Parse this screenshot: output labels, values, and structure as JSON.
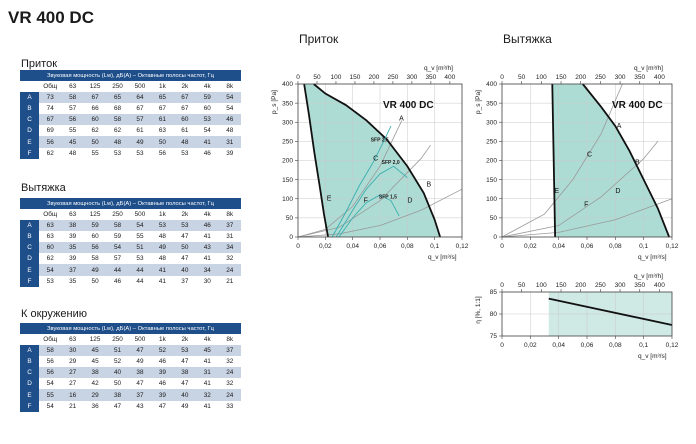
{
  "page_title": "VR 400 DC",
  "tables": [
    {
      "title": "Приток",
      "caption": "Звуковая мощность (Lw), дБ(А) – Октавные полосы частот, Гц",
      "columns": [
        "Общ",
        "63",
        "125",
        "250",
        "500",
        "1k",
        "2k",
        "4k",
        "8k"
      ],
      "rows": [
        {
          "label": "A",
          "values": [
            "73",
            "58",
            "67",
            "65",
            "64",
            "65",
            "67",
            "59",
            "54"
          ]
        },
        {
          "label": "B",
          "values": [
            "74",
            "57",
            "66",
            "68",
            "67",
            "67",
            "67",
            "60",
            "54"
          ]
        },
        {
          "label": "C",
          "values": [
            "67",
            "56",
            "60",
            "58",
            "57",
            "61",
            "60",
            "53",
            "46"
          ]
        },
        {
          "label": "D",
          "values": [
            "69",
            "55",
            "62",
            "62",
            "61",
            "63",
            "61",
            "54",
            "48"
          ]
        },
        {
          "label": "E",
          "values": [
            "56",
            "45",
            "50",
            "48",
            "49",
            "50",
            "48",
            "41",
            "31"
          ]
        },
        {
          "label": "F",
          "values": [
            "62",
            "48",
            "55",
            "53",
            "53",
            "56",
            "53",
            "46",
            "39"
          ]
        }
      ]
    },
    {
      "title": "Вытяжка",
      "caption": "Звуковая мощность (Lw), дБ(А) – Октавные полосы частот, Гц",
      "columns": [
        "Общ",
        "63",
        "125",
        "250",
        "500",
        "1k",
        "2k",
        "4k",
        "8k"
      ],
      "rows": [
        {
          "label": "A",
          "values": [
            "63",
            "38",
            "59",
            "58",
            "54",
            "53",
            "53",
            "46",
            "37"
          ]
        },
        {
          "label": "B",
          "values": [
            "63",
            "39",
            "60",
            "59",
            "55",
            "48",
            "47",
            "41",
            "31"
          ]
        },
        {
          "label": "C",
          "values": [
            "60",
            "35",
            "56",
            "54",
            "51",
            "49",
            "50",
            "43",
            "34"
          ]
        },
        {
          "label": "D",
          "values": [
            "62",
            "39",
            "58",
            "57",
            "53",
            "48",
            "47",
            "41",
            "32"
          ]
        },
        {
          "label": "E",
          "values": [
            "54",
            "37",
            "49",
            "44",
            "44",
            "41",
            "40",
            "34",
            "24"
          ]
        },
        {
          "label": "F",
          "values": [
            "53",
            "35",
            "50",
            "46",
            "44",
            "41",
            "37",
            "30",
            "21"
          ]
        }
      ]
    },
    {
      "title": "К окружению",
      "caption": "Звуковая мощность (Lw), дБ(А) – Октавные полосы частот, Гц",
      "columns": [
        "Общ",
        "63",
        "125",
        "250",
        "500",
        "1k",
        "2k",
        "4k",
        "8k"
      ],
      "rows": [
        {
          "label": "A",
          "values": [
            "58",
            "30",
            "45",
            "51",
            "47",
            "52",
            "53",
            "45",
            "37"
          ]
        },
        {
          "label": "B",
          "values": [
            "56",
            "29",
            "45",
            "52",
            "49",
            "46",
            "47",
            "41",
            "32"
          ]
        },
        {
          "label": "C",
          "values": [
            "56",
            "27",
            "38",
            "40",
            "38",
            "39",
            "38",
            "31",
            "24"
          ]
        },
        {
          "label": "D",
          "values": [
            "54",
            "27",
            "42",
            "50",
            "47",
            "46",
            "47",
            "41",
            "32"
          ]
        },
        {
          "label": "E",
          "values": [
            "55",
            "16",
            "29",
            "38",
            "37",
            "39",
            "40",
            "32",
            "24"
          ]
        },
        {
          "label": "F",
          "values": [
            "54",
            "21",
            "36",
            "47",
            "43",
            "47",
            "49",
            "41",
            "33"
          ]
        }
      ]
    }
  ],
  "chart_data": [
    {
      "type": "line",
      "title": "Приток",
      "model_label": "VR 400 DC",
      "xlabel": "q_v [m³/s]",
      "x2label": "q_v [m³/h]",
      "ylabel": "p_s [Pa]",
      "xlim": [
        0,
        0.12
      ],
      "ylim": [
        0,
        400
      ],
      "x_ticks": [
        "0",
        "0,02",
        "0,04",
        "0,06",
        "0,08",
        "0,1",
        "0,12"
      ],
      "x2_ticks": [
        "0",
        "50",
        "100",
        "150",
        "200",
        "250",
        "300",
        "350",
        "400"
      ],
      "y_ticks": [
        "0",
        "50",
        "100",
        "150",
        "200",
        "250",
        "300",
        "350",
        "400"
      ],
      "grid": true,
      "series": [
        {
          "role": "max_curve",
          "x": [
            0.0115,
            0.02,
            0.035,
            0.05,
            0.065,
            0.08,
            0.092,
            0.1,
            0.104
          ],
          "y": [
            400,
            375,
            345,
            305,
            255,
            185,
            115,
            45,
            0
          ]
        },
        {
          "role": "min_curve",
          "x": [
            0.0045,
            0.008,
            0.012,
            0.016,
            0.019,
            0.021,
            0.022
          ],
          "y": [
            400,
            320,
            220,
            130,
            60,
            20,
            0
          ]
        },
        {
          "name": "SFP 2,5",
          "x": [
            0.025,
            0.035,
            0.045,
            0.055,
            0.062,
            0.068
          ],
          "y": [
            0,
            65,
            135,
            195,
            245,
            290
          ]
        },
        {
          "name": "SFP 2,0",
          "x": [
            0.028,
            0.04,
            0.05,
            0.06,
            0.07,
            0.08
          ],
          "y": [
            0,
            70,
            125,
            165,
            185,
            155
          ]
        },
        {
          "name": "SFP 1,5",
          "x": [
            0.03,
            0.04,
            0.05,
            0.06,
            0.068,
            0.074
          ],
          "y": [
            0,
            50,
            90,
            110,
            95,
            55
          ]
        }
      ],
      "system_curves": [
        {
          "x": [
            0,
            0.02,
            0.04,
            0.06,
            0.076
          ],
          "y": [
            0,
            20,
            80,
            185,
            305
          ]
        },
        {
          "x": [
            0,
            0.03,
            0.06,
            0.09,
            0.097
          ],
          "y": [
            0,
            25,
            95,
            205,
            240
          ]
        },
        {
          "x": [
            0,
            0.03,
            0.06,
            0.09,
            0.12
          ],
          "y": [
            0,
            8,
            30,
            70,
            125
          ]
        }
      ],
      "points": [
        {
          "label": "A",
          "x": 0.074,
          "y": 305
        },
        {
          "label": "B",
          "x": 0.094,
          "y": 132
        },
        {
          "label": "C",
          "x": 0.055,
          "y": 200
        },
        {
          "label": "D",
          "x": 0.08,
          "y": 90
        },
        {
          "label": "E",
          "x": 0.021,
          "y": 95
        },
        {
          "label": "F",
          "x": 0.048,
          "y": 90
        }
      ],
      "colors": {
        "fill": "#9fd6cc",
        "curve": "#111111",
        "sfp": "#3aaeb0",
        "system": "#9a9a9a"
      }
    },
    {
      "type": "line",
      "title": "Вытяжка",
      "model_label": "VR 400 DC",
      "xlabel": "q_v [m³/s]",
      "x2label": "q_v [m³/h]",
      "ylabel": "p_s [Pa]",
      "xlim": [
        0,
        0.12
      ],
      "ylim": [
        0,
        400
      ],
      "x_ticks": [
        "0",
        "0,02",
        "0,04",
        "0,06",
        "0,08",
        "0,1",
        "0,12"
      ],
      "x2_ticks": [
        "0",
        "50",
        "100",
        "150",
        "200",
        "250",
        "300",
        "350",
        "400"
      ],
      "y_ticks": [
        "0",
        "50",
        "100",
        "150",
        "200",
        "250",
        "300",
        "350",
        "400"
      ],
      "grid": true,
      "series": [
        {
          "role": "max_curve",
          "x": [
            0.057,
            0.07,
            0.08,
            0.09,
            0.1,
            0.11,
            0.118
          ],
          "y": [
            400,
            340,
            290,
            225,
            150,
            75,
            0
          ]
        },
        {
          "role": "min_curve",
          "x": [
            0.0355,
            0.036,
            0.0365,
            0.037,
            0.0375
          ],
          "y": [
            400,
            300,
            200,
            100,
            0
          ]
        }
      ],
      "system_curves": [
        {
          "x": [
            0,
            0.03,
            0.05,
            0.07,
            0.085
          ],
          "y": [
            0,
            60,
            150,
            270,
            400
          ]
        },
        {
          "x": [
            0,
            0.04,
            0.07,
            0.1,
            0.11
          ],
          "y": [
            0,
            30,
            105,
            205,
            250
          ]
        },
        {
          "x": [
            0,
            0.04,
            0.08,
            0.12
          ],
          "y": [
            0,
            12,
            45,
            100
          ]
        }
      ],
      "points": [
        {
          "label": "A",
          "x": 0.081,
          "y": 285
        },
        {
          "label": "B",
          "x": 0.094,
          "y": 190
        },
        {
          "label": "C",
          "x": 0.06,
          "y": 210
        },
        {
          "label": "D",
          "x": 0.08,
          "y": 115
        },
        {
          "label": "E",
          "x": 0.037,
          "y": 115
        },
        {
          "label": "F",
          "x": 0.058,
          "y": 80
        }
      ],
      "colors": {
        "fill": "#9fd6cc",
        "curve": "#111111",
        "system": "#9a9a9a"
      }
    },
    {
      "type": "line",
      "xlabel": "q_v [m³/s]",
      "x2label": "q_v [m³/h]",
      "ylabel": "η [%, 1:1]",
      "xlim": [
        0,
        0.12
      ],
      "ylim": [
        75,
        85
      ],
      "x_ticks": [
        "0",
        "0,02",
        "0,04",
        "0,06",
        "0,08",
        "0,1",
        "0,12"
      ],
      "x2_ticks": [
        "0",
        "50",
        "100",
        "150",
        "200",
        "250",
        "300",
        "350",
        "400"
      ],
      "y_ticks": [
        "75",
        "80",
        "85"
      ],
      "grid": true,
      "series": [
        {
          "role": "efficiency",
          "x": [
            0.033,
            0.12
          ],
          "y": [
            83.5,
            77.5
          ]
        }
      ],
      "colors": {
        "fill": "#cfe9e4",
        "curve": "#111111"
      }
    }
  ]
}
